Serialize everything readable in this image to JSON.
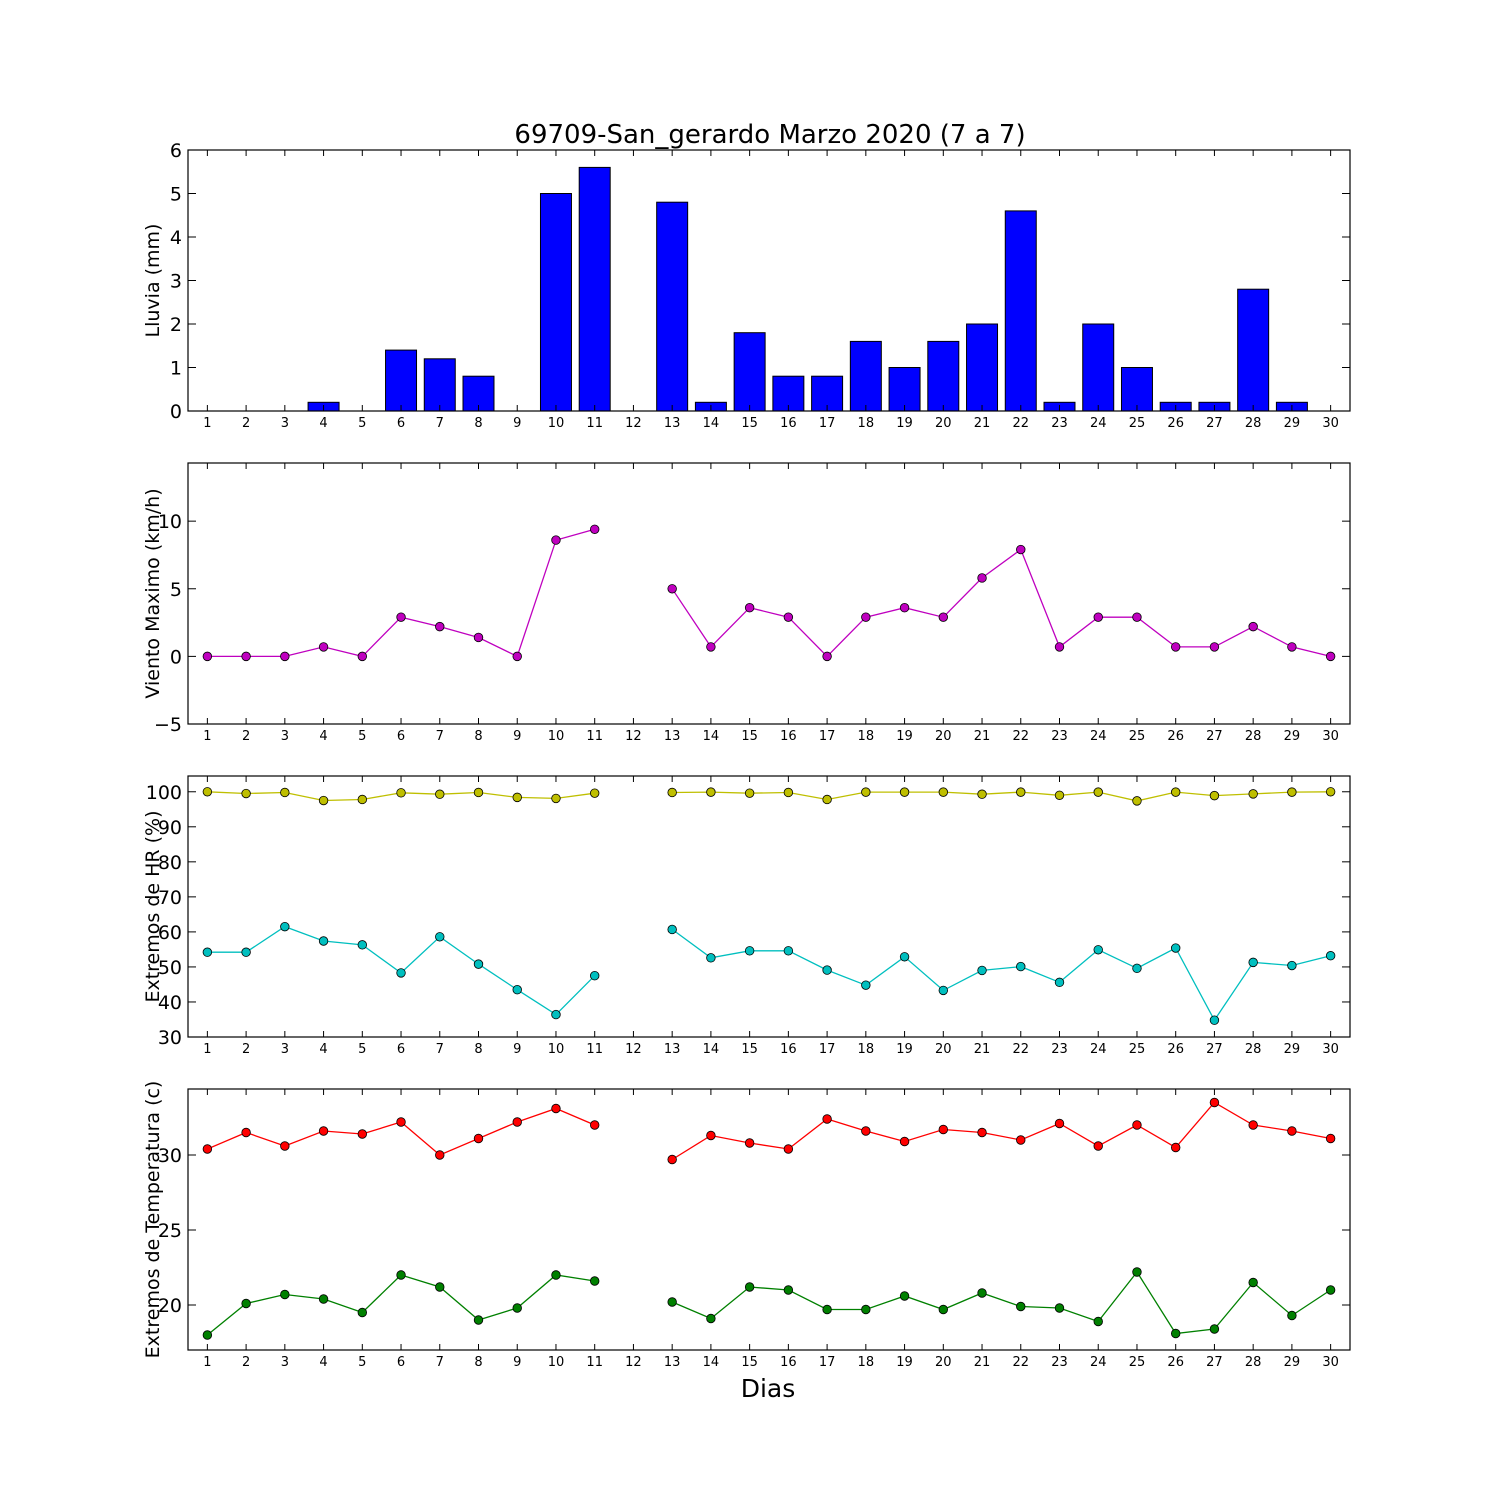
{
  "chart_data": {
    "title": "69709-San_gerardo Marzo 2020  (7 a 7)",
    "xlabel": "Dias",
    "days": [
      1,
      2,
      3,
      4,
      5,
      6,
      7,
      8,
      9,
      10,
      11,
      12,
      13,
      14,
      15,
      16,
      17,
      18,
      19,
      20,
      21,
      22,
      23,
      24,
      25,
      26,
      27,
      28,
      29,
      30
    ],
    "panels": [
      {
        "id": "lluvia",
        "type": "bar",
        "ylabel": "Lluvia (mm)",
        "ylim": [
          0,
          6
        ],
        "yticks": [
          0,
          1,
          2,
          3,
          4,
          5,
          6
        ],
        "series": [
          {
            "color": "#0000ff",
            "values": [
              0,
              0,
              0,
              0.2,
              0,
              1.4,
              1.2,
              0.8,
              0,
              5.0,
              5.6,
              0,
              4.8,
              0.2,
              1.8,
              0.8,
              0.8,
              1.6,
              1.0,
              1.6,
              2.0,
              4.6,
              0.2,
              2.0,
              1.0,
              0.2,
              0.2,
              2.8,
              0.2,
              0
            ]
          }
        ]
      },
      {
        "id": "viento",
        "type": "line",
        "ylabel": "Viento Maximo (km/h)",
        "ylim": [
          -5,
          14.3
        ],
        "yticks": [
          -5,
          0,
          5,
          10
        ],
        "series": [
          {
            "color": "#bf00bf",
            "values": [
              0,
              0,
              0,
              0.7,
              0,
              2.9,
              2.2,
              1.4,
              0,
              8.6,
              9.4,
              null,
              5.0,
              0.7,
              3.6,
              2.9,
              0,
              2.9,
              3.6,
              2.9,
              5.8,
              7.9,
              0.7,
              2.9,
              2.9,
              0.7,
              0.7,
              2.2,
              0.7,
              0
            ]
          }
        ]
      },
      {
        "id": "hr",
        "type": "line",
        "ylabel": "Extremos de HR (%)",
        "ylim": [
          30,
          104.5
        ],
        "yticks": [
          30,
          40,
          50,
          60,
          70,
          80,
          90,
          100
        ],
        "series": [
          {
            "color": "#bfbf00",
            "values": [
              100,
              99.5,
              99.8,
              97.5,
              97.8,
              99.7,
              99.3,
              99.8,
              98.4,
              98.1,
              99.6,
              null,
              99.8,
              99.9,
              99.6,
              99.8,
              97.8,
              99.9,
              99.9,
              99.9,
              99.3,
              99.9,
              99.0,
              99.9,
              97.4,
              99.9,
              98.9,
              99.4,
              99.9,
              100
            ]
          },
          {
            "color": "#00bfbf",
            "values": [
              54.2,
              54.2,
              61.5,
              57.4,
              56.3,
              48.3,
              58.6,
              50.8,
              43.5,
              36.4,
              47.5,
              null,
              60.7,
              52.6,
              54.6,
              54.6,
              49.1,
              44.8,
              52.9,
              43.3,
              49.0,
              50.1,
              45.6,
              54.9,
              49.6,
              55.4,
              34.8,
              51.3,
              50.4,
              53.2
            ]
          }
        ]
      },
      {
        "id": "temp",
        "type": "line",
        "ylabel": "Extremos de Temperatura (c)",
        "ylim": [
          17,
          34.4
        ],
        "yticks": [
          20,
          25,
          30
        ],
        "series": [
          {
            "color": "#ff0000",
            "values": [
              30.4,
              31.5,
              30.6,
              31.6,
              31.4,
              32.2,
              30.0,
              31.1,
              32.2,
              33.1,
              32.0,
              null,
              29.7,
              31.3,
              30.8,
              30.4,
              32.4,
              31.6,
              30.9,
              31.7,
              31.5,
              31.0,
              32.1,
              30.6,
              32.0,
              30.5,
              33.5,
              32.0,
              31.6,
              31.1
            ]
          },
          {
            "color": "#008000",
            "values": [
              18.0,
              20.1,
              20.7,
              20.4,
              19.5,
              22.0,
              21.2,
              19.0,
              19.8,
              22.0,
              21.6,
              null,
              20.2,
              19.1,
              21.2,
              21.0,
              19.7,
              19.7,
              20.6,
              19.7,
              20.8,
              19.9,
              19.8,
              18.9,
              22.2,
              18.1,
              18.4,
              21.5,
              19.3,
              21.0
            ]
          }
        ]
      }
    ]
  }
}
